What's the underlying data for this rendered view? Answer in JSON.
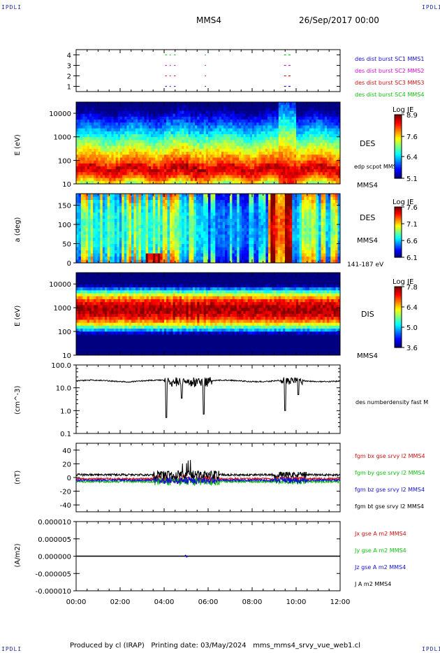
{
  "corners": {
    "tl": "IPDLI",
    "tr": "IPDLI",
    "bl": "IPDLI",
    "br": "IPDLI"
  },
  "header": {
    "spacecraft": "MMS4",
    "date": "26/Sep/2017 00:00"
  },
  "footer": {
    "text": "Produced by cl (IRAP)   Printing date: 03/May/2024   mms_mms4_srvy_vue_web1.cl"
  },
  "colors": {
    "blue": "#1010d0",
    "magenta": "#d010d0",
    "red": "#d01010",
    "green": "#10c010",
    "black": "#000000"
  },
  "chart_data": [
    {
      "type": "scatter",
      "panel": "burst-availability",
      "yticks": [
        "4",
        "3",
        "2",
        "1"
      ],
      "ylim": [
        0.5,
        4.5
      ],
      "legend": [
        {
          "label": "des dist burst SC1 MMS1",
          "color": "#1010d0"
        },
        {
          "label": "des dist burst SC2 MMS2",
          "color": "#d010d0"
        },
        {
          "label": "des dist burst SC3 MMS3",
          "color": "#d01010"
        },
        {
          "label": "des dist burst SC4 MMS4",
          "color": "#10c010"
        }
      ],
      "intervals_hours": [
        [
          4.05,
          4.12
        ],
        [
          4.25,
          4.3
        ],
        [
          4.45,
          4.52
        ],
        [
          5.85,
          5.9
        ],
        [
          9.45,
          9.55
        ],
        [
          9.65,
          9.75
        ]
      ]
    },
    {
      "type": "heatmap",
      "panel": "des-energy",
      "ylabel": "E (eV)",
      "yscale": "log",
      "ylim": [
        10,
        30000
      ],
      "yticks": [
        "10000",
        "1000",
        "100",
        "10"
      ],
      "label": "DES",
      "side_labels": [
        "edp scpot MMS4",
        "MMS4"
      ],
      "colorbar": {
        "title": "Log JE",
        "ticks": [
          "8.9",
          "7.6",
          "6.4",
          "5.1"
        ],
        "range": [
          5.1,
          8.9
        ]
      }
    },
    {
      "type": "heatmap",
      "panel": "des-pitch-angle",
      "ylabel": "a (deg)",
      "ylim": [
        0,
        180
      ],
      "yticks": [
        "150",
        "100",
        "50",
        "0"
      ],
      "label": "DES",
      "side_labels": [
        "MMS4",
        "141-187 eV"
      ],
      "colorbar": {
        "title": "Log JE",
        "ticks": [
          "7.6",
          "7.1",
          "6.6",
          "6.1"
        ],
        "range": [
          6.1,
          7.6
        ]
      }
    },
    {
      "type": "heatmap",
      "panel": "dis-energy",
      "ylabel": "E (eV)",
      "yscale": "log",
      "ylim": [
        10,
        30000
      ],
      "yticks": [
        "10000",
        "1000",
        "100",
        "10"
      ],
      "label": "DIS",
      "side_labels": [
        "MMS4"
      ],
      "colorbar": {
        "title": "Log JE",
        "ticks": [
          "7.8",
          "6.4",
          "5.0",
          "3.6"
        ],
        "range": [
          3.6,
          7.8
        ]
      }
    },
    {
      "type": "line",
      "panel": "density",
      "ylabel": "(cm^-3)",
      "yscale": "log",
      "ylim": [
        0.1,
        100
      ],
      "yticks": [
        "100.0",
        "10.0",
        "1.0",
        "0.1"
      ],
      "series": [
        {
          "name": "des numberdensity fast M",
          "color": "#000000"
        }
      ],
      "typical_value": 20,
      "dips_hours": [
        [
          4.1,
          0.5
        ],
        [
          4.8,
          3.5
        ],
        [
          5.8,
          0.7
        ],
        [
          9.5,
          1.0
        ],
        [
          10.1,
          5.0
        ]
      ]
    },
    {
      "type": "line",
      "panel": "magnetic-field",
      "ylabel": "(nT)",
      "ylim": [
        -50,
        50
      ],
      "yticks": [
        "40",
        "20",
        "0",
        "-20",
        "-40"
      ],
      "series": [
        {
          "name": "fgm bx gse srvy l2 MMS4",
          "color": "#d01010"
        },
        {
          "name": "fgm by gse srvy l2 MMS4",
          "color": "#10c010"
        },
        {
          "name": "fgm bz gse srvy l2 MMS4",
          "color": "#1010d0"
        },
        {
          "name": "fgm bt gse srvy l2 MMS4",
          "color": "#000000"
        }
      ]
    },
    {
      "type": "line",
      "panel": "current-density",
      "ylabel": "(A/m2)",
      "ylim": [
        -1e-05,
        1e-05
      ],
      "yticks": [
        "0.000010",
        "0.000005",
        "0.000000",
        "-0.000005",
        "-0.000010"
      ],
      "series": [
        {
          "name": "Jx gse A m2 MMS4",
          "color": "#d01010"
        },
        {
          "name": "Jy gse A m2 MMS4",
          "color": "#10c010"
        },
        {
          "name": "Jz gse A m2 MMS4",
          "color": "#1010d0"
        },
        {
          "name": "J A m2 MMS4",
          "color": "#000000"
        }
      ]
    }
  ],
  "x_axis": {
    "ticks": [
      "00:00",
      "02:00",
      "04:00",
      "06:00",
      "08:00",
      "10:00",
      "12:00"
    ],
    "range_hours": [
      0,
      12
    ]
  }
}
